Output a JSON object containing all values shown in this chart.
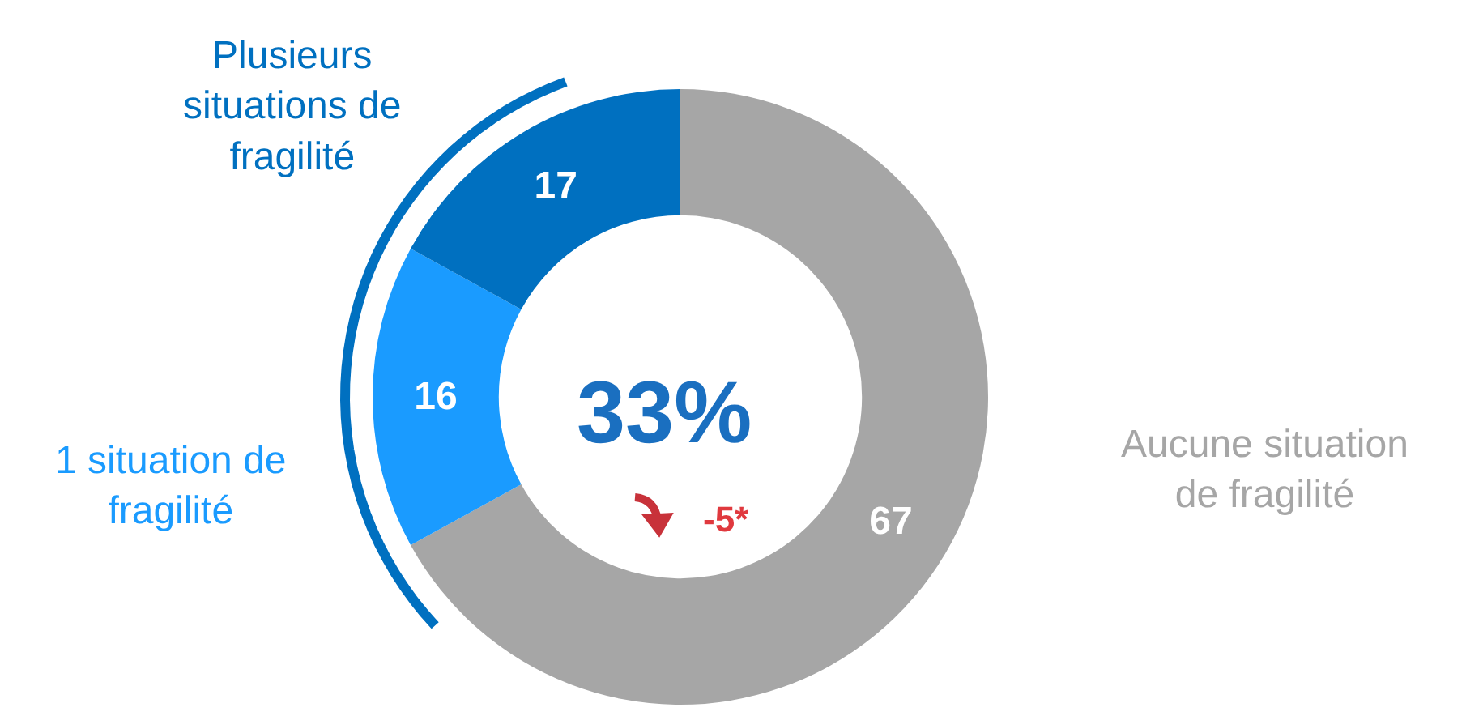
{
  "chart_data": {
    "type": "donut",
    "categories": [
      "Aucune situation de fragilité",
      "1 situation de fragilité",
      "Plusieurs situations de fragilité"
    ],
    "values": [
      67,
      16,
      17
    ],
    "colors": [
      "#a6a6a6",
      "#1a9bff",
      "#0070c0"
    ],
    "data_labels": true,
    "annotations": [
      "33%",
      "-5*"
    ]
  }
}
